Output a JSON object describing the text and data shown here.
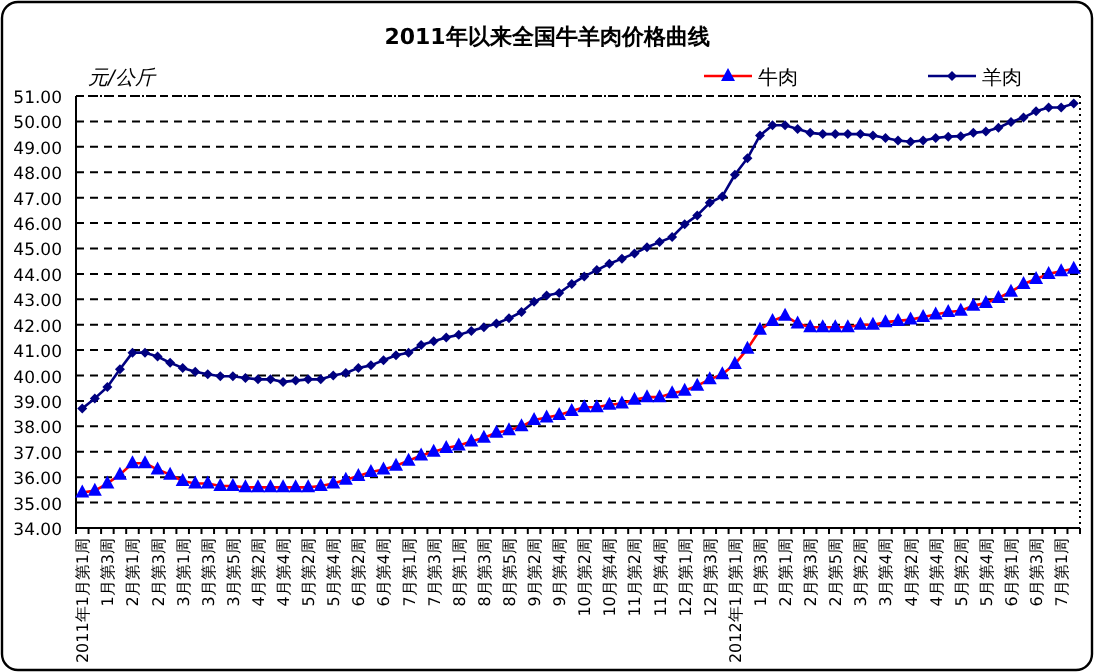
{
  "chart_data": {
    "type": "line",
    "title": "2011年以来全国牛羊肉价格曲线",
    "ylabel": "元/公斤",
    "categories": [
      "2011年1月第1周",
      null,
      "1月第3周",
      null,
      "2月第1周",
      null,
      "2月第3周",
      null,
      "3月第1周",
      null,
      "3月第3周",
      null,
      "3月第5周",
      null,
      "4月第2周",
      null,
      "4月第4周",
      null,
      "5月第2周",
      null,
      "5月第4周",
      null,
      "6月第2周",
      null,
      "6月第4周",
      null,
      "7月第1周",
      null,
      "7月第3周",
      null,
      "8月第1周",
      null,
      "8月第3周",
      null,
      "8月第5周",
      null,
      "9月第2周",
      null,
      "9月第4周",
      null,
      "10月第2周",
      null,
      "10月第4周",
      null,
      "11月第2周",
      null,
      "11月第4周",
      null,
      "12月第1周",
      null,
      "12月第3周",
      null,
      "2012年1月第1周",
      null,
      "1月第3周",
      null,
      "2月第1周",
      null,
      "2月第3周",
      null,
      "2月第5周",
      null,
      "3月第2周",
      null,
      "3月第4周",
      null,
      "4月第2周",
      null,
      "4月第4周",
      null,
      "5月第2周",
      null,
      "5月第4周",
      null,
      "6月第1周",
      null,
      "6月第3周",
      null,
      "7月第1周",
      null
    ],
    "series": [
      {
        "name": "牛肉",
        "color": "#0000ff",
        "marker": "triangle",
        "values": [
          35.4,
          35.47,
          35.75,
          36.1,
          36.55,
          36.55,
          36.3,
          36.1,
          35.85,
          35.75,
          35.75,
          35.65,
          35.65,
          35.6,
          35.6,
          35.6,
          35.6,
          35.6,
          35.6,
          35.65,
          35.75,
          35.9,
          36.05,
          36.2,
          36.3,
          36.45,
          36.65,
          36.85,
          37.0,
          37.15,
          37.25,
          37.4,
          37.55,
          37.75,
          37.85,
          38.0,
          38.25,
          38.35,
          38.45,
          38.6,
          38.75,
          38.75,
          38.85,
          38.9,
          39.05,
          39.15,
          39.15,
          39.3,
          39.4,
          39.6,
          39.85,
          40.05,
          40.45,
          41.05,
          41.8,
          42.15,
          42.35,
          42.05,
          41.9,
          41.9,
          41.9,
          41.9,
          42.0,
          42.0,
          42.1,
          42.15,
          42.2,
          42.3,
          42.4,
          42.5,
          42.55,
          42.75,
          42.85,
          43.05,
          43.3,
          43.6,
          43.8,
          44.0,
          44.1,
          44.2
        ]
      },
      {
        "name": "羊肉",
        "color": "#000080",
        "marker": "diamond",
        "values": [
          38.7,
          39.1,
          39.55,
          40.25,
          40.9,
          40.9,
          40.75,
          40.5,
          40.3,
          40.15,
          40.05,
          39.97,
          39.97,
          39.9,
          39.85,
          39.85,
          39.75,
          39.8,
          39.85,
          39.85,
          40.0,
          40.1,
          40.3,
          40.4,
          40.6,
          40.8,
          40.9,
          41.2,
          41.35,
          41.5,
          41.6,
          41.75,
          41.9,
          42.05,
          42.25,
          42.5,
          42.9,
          43.15,
          43.25,
          43.6,
          43.9,
          44.15,
          44.4,
          44.6,
          44.8,
          45.05,
          45.25,
          45.45,
          45.95,
          46.3,
          46.8,
          47.05,
          47.9,
          48.55,
          49.45,
          49.85,
          49.85,
          49.7,
          49.55,
          49.5,
          49.5,
          49.5,
          49.5,
          49.45,
          49.35,
          49.25,
          49.2,
          49.25,
          49.35,
          49.4,
          49.42,
          49.55,
          49.6,
          49.75,
          49.98,
          50.15,
          50.4,
          50.55,
          50.55,
          50.7
        ]
      }
    ],
    "ylim": [
      34,
      51
    ],
    "yticks": [
      {
        "value": 34,
        "label": "34.00"
      },
      {
        "value": 35,
        "label": "35.00"
      },
      {
        "value": 36,
        "label": "36.00"
      },
      {
        "value": 37,
        "label": "37.00"
      },
      {
        "value": 38,
        "label": "38.00"
      },
      {
        "value": 39,
        "label": "39.00"
      },
      {
        "value": 40,
        "label": "40.00"
      },
      {
        "value": 41,
        "label": "41.00"
      },
      {
        "value": 42,
        "label": "42.00"
      },
      {
        "value": 43,
        "label": "43.00"
      },
      {
        "value": 44,
        "label": "44.00"
      },
      {
        "value": 45,
        "label": "45.00"
      },
      {
        "value": 46,
        "label": "46.00"
      },
      {
        "value": 47,
        "label": "47.00"
      },
      {
        "value": 48,
        "label": "48.00"
      },
      {
        "value": 49,
        "label": "49.00"
      },
      {
        "value": 50,
        "label": "50.00"
      },
      {
        "value": 51,
        "label": "51.00"
      }
    ],
    "grid": "y",
    "legend": "top right"
  }
}
